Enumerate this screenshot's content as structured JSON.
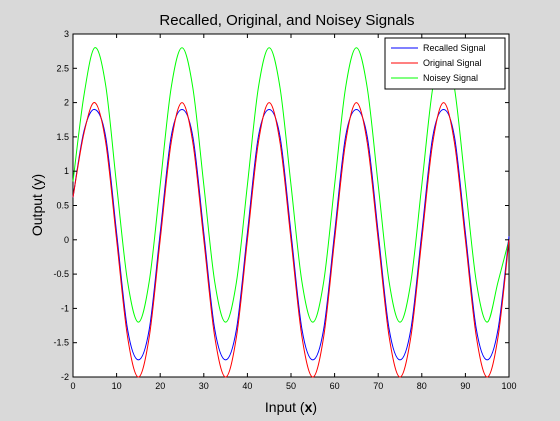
{
  "chart_data": {
    "type": "line",
    "title": "Recalled, Original, and Noisey Signals",
    "xlabel_prefix": "Input (",
    "xlabel_bold": "x",
    "xlabel_suffix": ")",
    "ylabel": "Output (y)",
    "xlim": [
      0,
      100
    ],
    "ylim": [
      -2,
      3
    ],
    "xticks": [
      0,
      10,
      20,
      30,
      40,
      50,
      60,
      70,
      80,
      90,
      100
    ],
    "yticks": [
      -2,
      -1.5,
      -1,
      -0.5,
      0,
      0.5,
      1,
      1.5,
      2,
      2.5,
      3
    ],
    "xtick_labels": [
      "0",
      "10",
      "20",
      "30",
      "40",
      "50",
      "60",
      "70",
      "80",
      "90",
      "100"
    ],
    "ytick_labels": [
      "-2",
      "-1.5",
      "-1",
      "-0.5",
      "0",
      "0.5",
      "1",
      "1.5",
      "2",
      "2.5",
      "3"
    ],
    "grid": false,
    "legend_position": "top-right",
    "x": [
      0,
      2.5,
      5,
      7.5,
      10,
      12.5,
      15,
      17.5,
      20,
      22.5,
      25,
      27.5,
      30,
      32.5,
      35,
      37.5,
      40,
      42.5,
      45,
      47.5,
      50,
      52.5,
      55,
      57.5,
      60,
      62.5,
      65,
      67.5,
      70,
      72.5,
      75,
      77.5,
      80,
      82.5,
      85,
      87.5,
      90,
      92.5,
      95,
      97.5,
      100
    ],
    "series": [
      {
        "name": "Recalled Signal",
        "color": "#0000ff",
        "values": [
          0.62,
          1.58,
          1.9,
          1.5,
          0.1,
          -1.3,
          -1.75,
          -1.3,
          0.1,
          1.5,
          1.9,
          1.5,
          0.1,
          -1.3,
          -1.75,
          -1.3,
          0.1,
          1.5,
          1.9,
          1.5,
          0.1,
          -1.3,
          -1.75,
          -1.3,
          0.1,
          1.5,
          1.9,
          1.5,
          0.1,
          -1.3,
          -1.75,
          -1.3,
          0.1,
          1.5,
          1.9,
          1.5,
          0.1,
          -1.3,
          -1.75,
          -1.3,
          0.05
        ]
      },
      {
        "name": "Original Signal",
        "color": "#ff0000",
        "values": [
          0.62,
          1.55,
          2.0,
          1.42,
          0.0,
          -1.41,
          -2.0,
          -1.41,
          0.0,
          1.41,
          2.0,
          1.41,
          0.0,
          -1.41,
          -2.0,
          -1.41,
          0.0,
          1.41,
          2.0,
          1.41,
          0.0,
          -1.41,
          -2.0,
          -1.41,
          0.0,
          1.41,
          2.0,
          1.41,
          0.0,
          -1.41,
          -2.0,
          -1.41,
          0.0,
          1.41,
          2.0,
          1.41,
          0.0,
          -1.41,
          -2.0,
          -1.41,
          0.0
        ]
      },
      {
        "name": "Noisey Signal",
        "color": "#00ff00",
        "values": [
          0.85,
          2.1,
          2.8,
          2.25,
          0.8,
          -0.6,
          -1.2,
          -0.6,
          0.8,
          2.21,
          2.8,
          2.21,
          0.8,
          -0.61,
          -1.2,
          -0.61,
          0.8,
          2.21,
          2.8,
          2.21,
          0.8,
          -0.61,
          -1.2,
          -0.61,
          0.8,
          2.21,
          2.8,
          2.21,
          0.8,
          -0.61,
          -1.2,
          -0.61,
          0.8,
          2.21,
          2.8,
          2.21,
          0.8,
          -0.61,
          -1.2,
          -0.61,
          0.0
        ]
      }
    ]
  }
}
